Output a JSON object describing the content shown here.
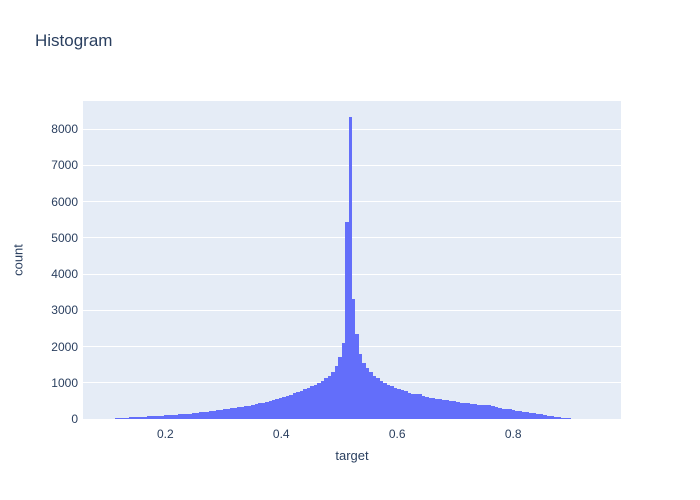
{
  "chart_data": {
    "type": "histogram",
    "title": "Histogram",
    "xlabel": "target",
    "ylabel": "count",
    "bar_color": "#636efa",
    "plot_bg_color": "#e5ecf6",
    "text_color": "#2a3f5f",
    "grid_color": "#ffffff",
    "grid": true,
    "legend": false,
    "xlim": [
      0.058,
      0.986
    ],
    "ylim": [
      0,
      8780
    ],
    "xticks": [
      0.2,
      0.4,
      0.6,
      0.8
    ],
    "xtick_labels": [
      "0.2",
      "0.4",
      "0.6",
      "0.8"
    ],
    "yticks": [
      0,
      1000,
      2000,
      3000,
      4000,
      5000,
      6000,
      7000,
      8000
    ],
    "ytick_labels": [
      "0",
      "1000",
      "2000",
      "3000",
      "4000",
      "5000",
      "6000",
      "7000",
      "8000"
    ],
    "bin_width": 0.006,
    "peak": {
      "x": 0.519,
      "count": 8340
    },
    "bin_centers": [
      0.117,
      0.123,
      0.129,
      0.135,
      0.141,
      0.147,
      0.153,
      0.159,
      0.165,
      0.171,
      0.177,
      0.183,
      0.189,
      0.195,
      0.201,
      0.207,
      0.213,
      0.219,
      0.225,
      0.231,
      0.237,
      0.243,
      0.249,
      0.255,
      0.261,
      0.267,
      0.273,
      0.279,
      0.285,
      0.291,
      0.297,
      0.303,
      0.309,
      0.315,
      0.321,
      0.327,
      0.333,
      0.339,
      0.345,
      0.351,
      0.357,
      0.363,
      0.369,
      0.375,
      0.381,
      0.387,
      0.393,
      0.399,
      0.405,
      0.411,
      0.417,
      0.423,
      0.429,
      0.435,
      0.441,
      0.447,
      0.453,
      0.459,
      0.465,
      0.471,
      0.477,
      0.483,
      0.489,
      0.495,
      0.501,
      0.507,
      0.513,
      0.519,
      0.525,
      0.531,
      0.537,
      0.543,
      0.549,
      0.555,
      0.561,
      0.567,
      0.573,
      0.579,
      0.585,
      0.591,
      0.597,
      0.603,
      0.609,
      0.615,
      0.621,
      0.627,
      0.633,
      0.639,
      0.645,
      0.651,
      0.657,
      0.663,
      0.669,
      0.675,
      0.681,
      0.687,
      0.693,
      0.699,
      0.705,
      0.711,
      0.717,
      0.723,
      0.729,
      0.735,
      0.741,
      0.747,
      0.753,
      0.759,
      0.765,
      0.771,
      0.777,
      0.783,
      0.789,
      0.795,
      0.801,
      0.807,
      0.813,
      0.819,
      0.825,
      0.831,
      0.837,
      0.843,
      0.849,
      0.855,
      0.861,
      0.867,
      0.873,
      0.879,
      0.885,
      0.891,
      0.897
    ],
    "counts": [
      25,
      30,
      28,
      38,
      45,
      52,
      55,
      60,
      66,
      70,
      78,
      82,
      88,
      95,
      98,
      108,
      112,
      120,
      128,
      138,
      145,
      152,
      160,
      172,
      180,
      192,
      205,
      218,
      232,
      245,
      262,
      275,
      288,
      300,
      312,
      325,
      335,
      350,
      365,
      385,
      410,
      430,
      455,
      480,
      505,
      530,
      555,
      580,
      610,
      640,
      670,
      705,
      740,
      775,
      815,
      860,
      905,
      950,
      1000,
      1060,
      1120,
      1200,
      1310,
      1450,
      1700,
      2100,
      5430,
      8340,
      3300,
      2350,
      1800,
      1550,
      1400,
      1290,
      1200,
      1120,
      1050,
      1000,
      950,
      900,
      860,
      820,
      790,
      760,
      730,
      700,
      680,
      690,
      640,
      610,
      590,
      570,
      555,
      565,
      530,
      515,
      500,
      485,
      470,
      455,
      445,
      430,
      420,
      405,
      395,
      385,
      380,
      385,
      355,
      335,
      310,
      290,
      275,
      265,
      250,
      235,
      210,
      195,
      180,
      170,
      158,
      145,
      132,
      112,
      95,
      78,
      62,
      50,
      38,
      25,
      12
    ]
  }
}
